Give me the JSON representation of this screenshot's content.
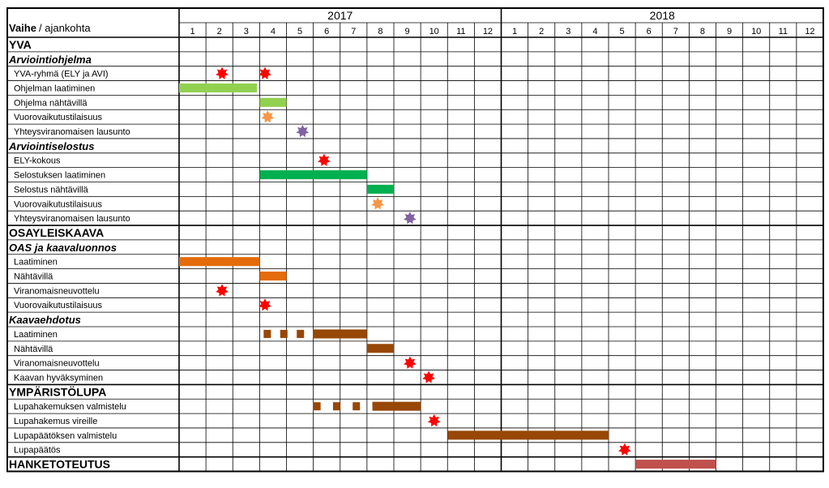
{
  "header": {
    "title_bold": "Vaihe",
    "title_rest": " / ajankohta",
    "years": [
      "2017",
      "2018"
    ],
    "months": [
      "1",
      "2",
      "3",
      "4",
      "5",
      "6",
      "7",
      "8",
      "9",
      "10",
      "11",
      "12"
    ]
  },
  "colors": {
    "light_green": "#92d050",
    "green": "#00b050",
    "orange": "#e46c0a",
    "orange_star": "#f79646",
    "purple": "#8064a2",
    "red": "#ff0000",
    "brown": "#974706",
    "rose": "#c0504d"
  },
  "rows": [
    {
      "label": "YVA",
      "style": "section"
    },
    {
      "label": "Arviointiohjelma",
      "style": "subsection"
    },
    {
      "label": "YVA-ryhmä (ELY ja AVI)",
      "style": "item",
      "marks": [
        {
          "type": "star",
          "month": 1.6,
          "color": "red"
        },
        {
          "type": "star",
          "month": 3.2,
          "color": "red"
        }
      ]
    },
    {
      "label": "Ohjelman laatiminen",
      "style": "item",
      "marks": [
        {
          "type": "bar",
          "start": 0,
          "end": 2.9,
          "color": "light_green"
        }
      ]
    },
    {
      "label": "Ohjelma nähtävillä",
      "style": "item",
      "marks": [
        {
          "type": "bar",
          "start": 3.0,
          "end": 4.0,
          "color": "light_green"
        }
      ]
    },
    {
      "label": "Vuorovaikutustilaisuus",
      "style": "item",
      "marks": [
        {
          "type": "star",
          "month": 3.3,
          "color": "orange_star"
        }
      ]
    },
    {
      "label": "Yhteysviranomaisen lausunto",
      "style": "item",
      "marks": [
        {
          "type": "star",
          "month": 4.6,
          "color": "purple"
        }
      ]
    },
    {
      "label": "Arviointiselostus",
      "style": "subsection"
    },
    {
      "label": "ELY-kokous",
      "style": "item",
      "marks": [
        {
          "type": "star",
          "month": 5.4,
          "color": "red"
        }
      ]
    },
    {
      "label": "Selostuksen laatiminen",
      "style": "item",
      "marks": [
        {
          "type": "bar",
          "start": 3.0,
          "end": 7.0,
          "color": "green"
        }
      ]
    },
    {
      "label": "Selostus nähtävillä",
      "style": "item",
      "marks": [
        {
          "type": "bar",
          "start": 7.0,
          "end": 8.0,
          "color": "green"
        }
      ]
    },
    {
      "label": "Vuorovaikutustilaisuus",
      "style": "item",
      "marks": [
        {
          "type": "star",
          "month": 7.4,
          "color": "orange_star"
        }
      ]
    },
    {
      "label": "Yhteysviranomaisen lausunto",
      "style": "item",
      "marks": [
        {
          "type": "star",
          "month": 8.6,
          "color": "purple"
        }
      ]
    },
    {
      "label": "OSAYLEISKAAVA",
      "style": "section"
    },
    {
      "label": "OAS ja kaavaluonnos",
      "style": "subsection"
    },
    {
      "label": "Laatiminen",
      "style": "item",
      "marks": [
        {
          "type": "bar",
          "start": 0,
          "end": 3.0,
          "color": "orange"
        }
      ]
    },
    {
      "label": "Nähtävillä",
      "style": "item",
      "marks": [
        {
          "type": "bar",
          "start": 3.0,
          "end": 4.0,
          "color": "orange"
        }
      ]
    },
    {
      "label": "Viranomaisneuvottelu",
      "style": "item",
      "marks": [
        {
          "type": "star",
          "month": 1.6,
          "color": "red"
        }
      ]
    },
    {
      "label": "Vuorovaikutustilaisuus",
      "style": "item",
      "marks": [
        {
          "type": "star",
          "month": 3.2,
          "color": "red"
        }
      ]
    },
    {
      "label": "Kaavaehdotus",
      "style": "subsection"
    },
    {
      "label": "Laatiminen",
      "style": "item",
      "marks": [
        {
          "type": "dashes",
          "start": 3.15,
          "end": 5.0,
          "color": "brown"
        },
        {
          "type": "bar",
          "start": 5.0,
          "end": 7.0,
          "color": "brown"
        }
      ]
    },
    {
      "label": "Nähtävillä",
      "style": "item",
      "marks": [
        {
          "type": "bar",
          "start": 7.0,
          "end": 8.0,
          "color": "brown"
        }
      ]
    },
    {
      "label": "Viranomaisneuvottelu",
      "style": "item",
      "marks": [
        {
          "type": "star",
          "month": 8.6,
          "color": "red"
        }
      ]
    },
    {
      "label": "Kaavan hyväksyminen",
      "style": "item",
      "marks": [
        {
          "type": "star",
          "month": 9.3,
          "color": "red"
        }
      ]
    },
    {
      "label": "YMPÄRISTÖLUPA",
      "style": "section"
    },
    {
      "label": "Lupahakemuksen valmistelu",
      "style": "item",
      "marks": [
        {
          "type": "dashes",
          "start": 5.0,
          "end": 7.2,
          "color": "brown"
        },
        {
          "type": "bar",
          "start": 7.2,
          "end": 9.0,
          "color": "brown"
        }
      ]
    },
    {
      "label": "Lupahakemus vireille",
      "style": "item",
      "marks": [
        {
          "type": "star",
          "month": 9.5,
          "color": "red"
        }
      ]
    },
    {
      "label": "Lupapäätöksen valmistelu",
      "style": "item",
      "marks": [
        {
          "type": "bar",
          "start": 10.0,
          "end": 16.0,
          "color": "brown"
        }
      ]
    },
    {
      "label": "Lupapäätös",
      "style": "item",
      "marks": [
        {
          "type": "star",
          "month": 16.6,
          "color": "red"
        }
      ]
    },
    {
      "label": "HANKETOTEUTUS",
      "style": "section",
      "marks": [
        {
          "type": "bar",
          "start": 17.0,
          "end": 20.0,
          "color": "rose"
        }
      ]
    }
  ]
}
